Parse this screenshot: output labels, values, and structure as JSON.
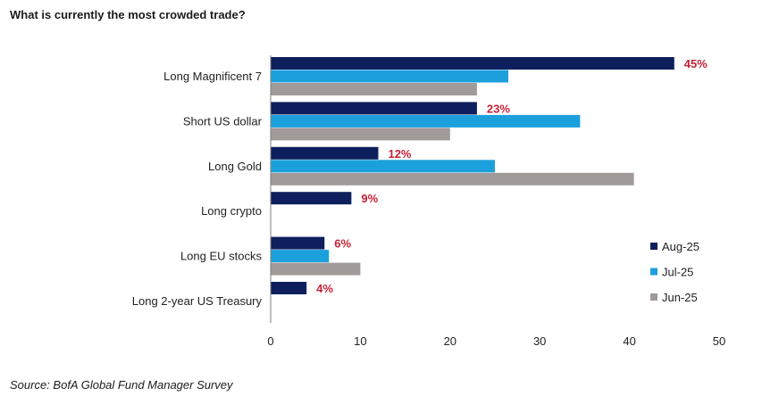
{
  "header": {
    "title": "What is currently the most crowded trade?"
  },
  "footer": {
    "source": "Source: BofA Global Fund Manager Survey"
  },
  "colors": {
    "label_accent": "#c62036",
    "axis": "#7f7f7f"
  },
  "chart_data": {
    "type": "bar",
    "orientation": "horizontal",
    "title": "What is currently the most crowded trade?",
    "xlabel": "",
    "ylabel": "",
    "xlim": [
      0,
      50
    ],
    "xticks": [
      0,
      10,
      20,
      30,
      40,
      50
    ],
    "grid": false,
    "legend_position": "bottom-right",
    "categories": [
      "Long Magnificent 7",
      "Short US dollar",
      "Long Gold",
      "Long crypto",
      "Long EU stocks",
      "Long 2-year US Treasury"
    ],
    "series": [
      {
        "name": "Aug-25",
        "color": "#0d1f5c",
        "values": [
          45,
          23,
          12,
          9,
          6,
          4
        ]
      },
      {
        "name": "Jul-25",
        "color": "#1ca0dc",
        "values": [
          26.5,
          34.5,
          25,
          null,
          6.5,
          null
        ]
      },
      {
        "name": "Jun-25",
        "color": "#a09a99",
        "values": [
          23,
          20,
          40.5,
          null,
          10,
          null
        ]
      }
    ],
    "data_labels": [
      "45%",
      "23%",
      "12%",
      "9%",
      "6%",
      "4%"
    ]
  }
}
